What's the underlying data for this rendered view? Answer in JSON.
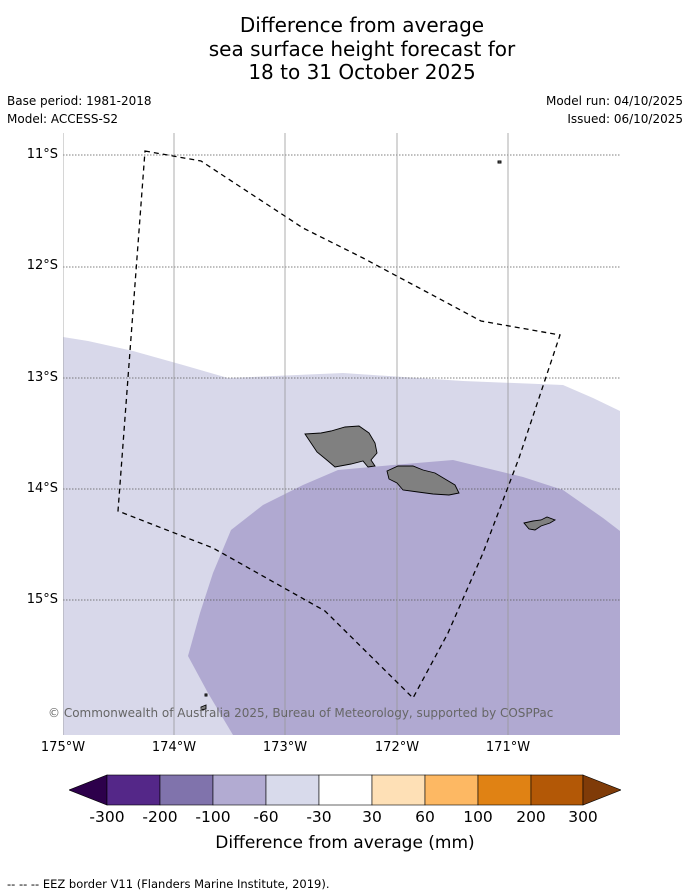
{
  "title": {
    "line1": "Difference from average",
    "line2": "sea surface height forecast for",
    "line3": "18 to 31 October 2025"
  },
  "meta": {
    "base_period": "Base period: 1981-2018",
    "model": "Model: ACCESS-S2",
    "model_run": "Model run: 04/10/2025",
    "issued": "Issued: 06/10/2025"
  },
  "map": {
    "lat_labels": [
      "11°S",
      "12°S",
      "13°S",
      "14°S",
      "15°S"
    ],
    "lon_labels": [
      "175°W",
      "174°W",
      "173°W",
      "172°W",
      "171°W"
    ],
    "copyright": "© Commonwealth of Australia 2025, Bureau of Meteorology, supported by COSPPac",
    "colors": {
      "band_minus30_minus60": "#d8d8ea",
      "band_minus60_minus100": "#b0a9d1",
      "land": "#808080"
    }
  },
  "colorbar": {
    "ticks": [
      "-300",
      "-200",
      "-100",
      "-60",
      "-30",
      "30",
      "60",
      "100",
      "200",
      "300"
    ],
    "colors": [
      "#2d004b",
      "#542788",
      "#8073ac",
      "#b2abd2",
      "#d8daeb",
      "#ffffff",
      "#fee0b6",
      "#fdb863",
      "#e08214",
      "#b35806",
      "#7f3b08"
    ],
    "label": "Difference from average (mm)"
  },
  "footnote": "--  --  -- EEZ border V11 (Flanders Marine Institute, 2019)."
}
